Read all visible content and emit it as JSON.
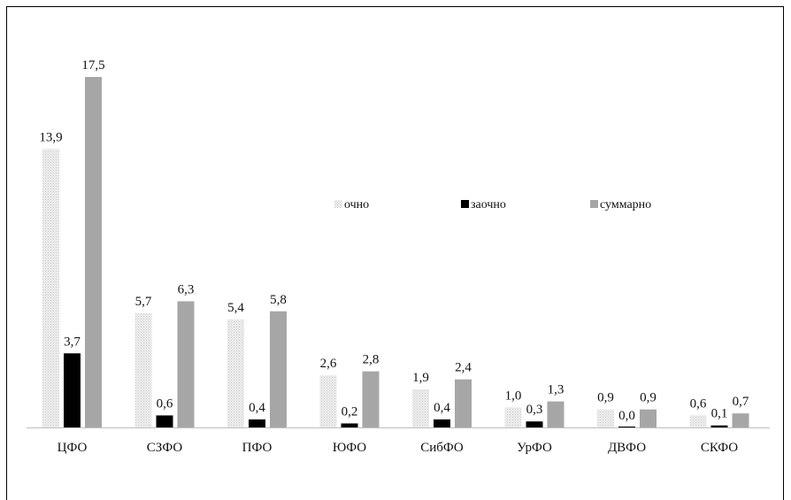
{
  "chart_data": {
    "type": "bar",
    "categories": [
      "ЦФО",
      "СЗФО",
      "ПФО",
      "ЮФО",
      "СибФО",
      "УрФО",
      "ДВФО",
      "СКФО"
    ],
    "series": [
      {
        "name": "очно",
        "values": [
          13.9,
          5.7,
          5.4,
          2.6,
          1.9,
          1.0,
          0.9,
          0.6
        ],
        "labels": [
          "13,9",
          "5,7",
          "5,4",
          "2,6",
          "1,9",
          "1,0",
          "0,9",
          "0,6"
        ],
        "color": "#e3e3e3"
      },
      {
        "name": "заочно",
        "values": [
          3.7,
          0.6,
          0.4,
          0.2,
          0.4,
          0.3,
          0.0,
          0.1
        ],
        "labels": [
          "3,7",
          "0,6",
          "0,4",
          "0,2",
          "0,4",
          "0,3",
          "0,0",
          "0,1"
        ],
        "color": "#000000"
      },
      {
        "name": "суммарно",
        "values": [
          17.5,
          6.3,
          5.8,
          2.8,
          2.4,
          1.3,
          0.9,
          0.7
        ],
        "labels": [
          "17,5",
          "6,3",
          "5,8",
          "2,8",
          "2,4",
          "1,3",
          "0,9",
          "0,7"
        ],
        "color": "#a6a6a6"
      }
    ],
    "legend_position": "center-right",
    "grid": false,
    "ylim": [
      0,
      17.5
    ]
  }
}
